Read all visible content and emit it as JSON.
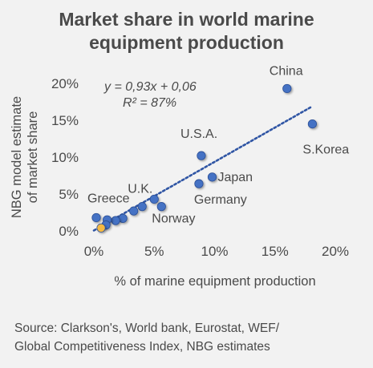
{
  "title_lines": [
    "Market share in world marine",
    "equipment production"
  ],
  "source_lines": [
    "Source: Clarkson's, World bank,  Eurostat, WEF/",
    "Global Competitiveness Index,   NBG estimates"
  ],
  "colors": {
    "marker": "#4472c4",
    "highlight_marker": "#f5b942",
    "trendline": "#2f55a4",
    "text": "#4a4a4a",
    "background": "#f2f2f2"
  },
  "chart_data": {
    "type": "scatter",
    "title": "Market share in world marine equipment production",
    "xlabel": "% of marine equipment production",
    "ylabel_lines": [
      "NBG model estimate",
      "of market share"
    ],
    "xlim": [
      0,
      20
    ],
    "ylim": [
      0,
      20
    ],
    "x_ticks": [
      "0%",
      "5%",
      "10%",
      "15%",
      "20%"
    ],
    "y_ticks": [
      "0%",
      "5%",
      "10%",
      "15%",
      "20%"
    ],
    "grid": false,
    "legend": "none",
    "equation": "y = 0,93x + 0,06",
    "r_squared": "R² = 87%",
    "trendline": {
      "slope": 0.93,
      "intercept": 0.06,
      "x_range": [
        0,
        18
      ]
    },
    "points": [
      {
        "label": "China",
        "x": 16.0,
        "y": 19.3
      },
      {
        "label": "S.Korea",
        "x": 18.1,
        "y": 14.5
      },
      {
        "label": "U.S.A.",
        "x": 8.9,
        "y": 10.2
      },
      {
        "label": "Japan",
        "x": 9.8,
        "y": 7.3
      },
      {
        "label": "Germany",
        "x": 8.7,
        "y": 6.4
      },
      {
        "label": "U.K.",
        "x": 5.0,
        "y": 4.3
      },
      {
        "label": "Norway",
        "x": 5.6,
        "y": 3.3
      },
      {
        "label": "",
        "x": 4.0,
        "y": 3.3
      },
      {
        "label": "",
        "x": 3.3,
        "y": 2.7
      },
      {
        "label": "",
        "x": 2.4,
        "y": 1.7
      },
      {
        "label": "",
        "x": 1.8,
        "y": 1.4
      },
      {
        "label": "Greece",
        "x": 0.2,
        "y": 1.8
      },
      {
        "label": "",
        "x": 1.1,
        "y": 1.5
      },
      {
        "label": "",
        "x": 1.0,
        "y": 0.8
      },
      {
        "label": "",
        "x": 0.6,
        "y": 0.4,
        "highlight": true
      }
    ]
  }
}
